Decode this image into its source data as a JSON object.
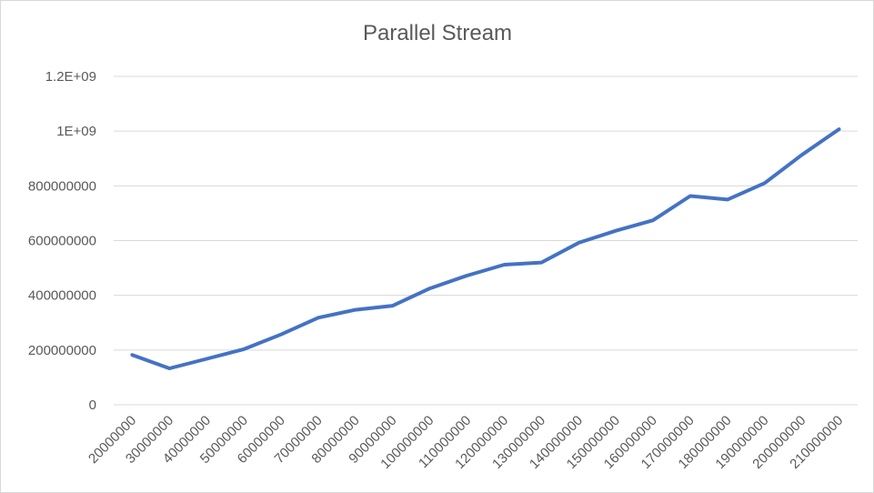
{
  "chart_data": {
    "type": "line",
    "title": "Parallel Stream",
    "xlabel": "",
    "ylabel": "",
    "ylim": [
      0,
      1200000000
    ],
    "y_ticks": [
      0,
      200000000,
      400000000,
      600000000,
      800000000,
      1000000000,
      1200000000
    ],
    "y_tick_labels": [
      "0",
      "200000000",
      "400000000",
      "600000000",
      "800000000",
      "1E+09",
      "1.2E+09"
    ],
    "grid": true,
    "legend": "none",
    "categories": [
      "20000000",
      "30000000",
      "40000000",
      "50000000",
      "60000000",
      "70000000",
      "80000000",
      "90000000",
      "100000000",
      "110000000",
      "120000000",
      "130000000",
      "140000000",
      "150000000",
      "160000000",
      "170000000",
      "180000000",
      "190000000",
      "200000000",
      "210000000"
    ],
    "series": [
      {
        "color": "#4472c4",
        "values": [
          182000000,
          133000000,
          168000000,
          203000000,
          257000000,
          318000000,
          347000000,
          362000000,
          425000000,
          472000000,
          512000000,
          520000000,
          592000000,
          636000000,
          674000000,
          763000000,
          750000000,
          810000000,
          913000000,
          1007000000
        ]
      }
    ]
  }
}
